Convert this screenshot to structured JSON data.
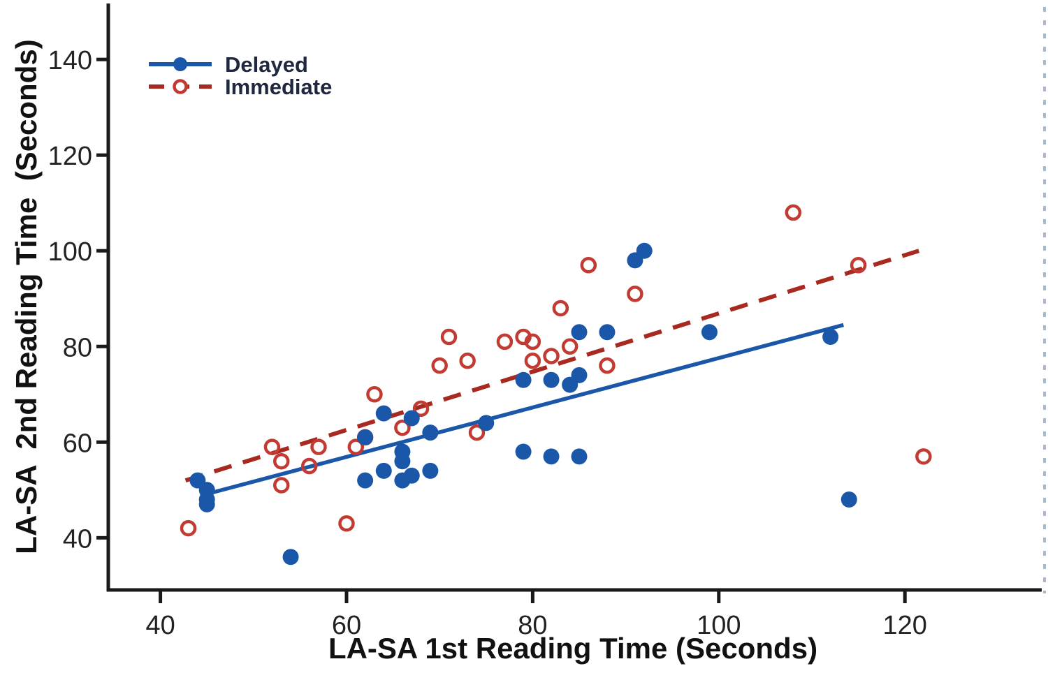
{
  "colors": {
    "background": "#ffffff",
    "axis": "#1a1a1a",
    "tick_label": "#222222",
    "legend_text": "#20283f",
    "delayed_blue": "#1b57a8",
    "immediate_red_marker": "#c23b32",
    "immediate_red_line": "#a8291f"
  },
  "legend": {
    "items": [
      {
        "label": "Delayed"
      },
      {
        "label": "Immediate"
      }
    ]
  },
  "chart_data": {
    "type": "scatter",
    "title": "",
    "xlabel": "LA-SA 1st Reading Time (Seconds)",
    "ylabel": "LA-SA  2nd Reading Time  (Seconds)",
    "xlim": [
      34.4,
      134.7
    ],
    "ylim": [
      29.1,
      151.7
    ],
    "xticks": [
      40,
      60,
      80,
      100,
      120
    ],
    "yticks": [
      40,
      60,
      80,
      100,
      120,
      140
    ],
    "grid": false,
    "legend_position": "top-left",
    "series": [
      {
        "name": "Delayed",
        "marker": "filled-circle",
        "color": "#1b57a8",
        "line_color": "#1b57a8",
        "line_style": "solid",
        "points": [
          [
            44,
            52
          ],
          [
            45,
            50
          ],
          [
            45,
            48
          ],
          [
            45,
            47
          ],
          [
            54,
            36
          ],
          [
            62,
            52
          ],
          [
            62,
            61
          ],
          [
            64,
            54
          ],
          [
            64,
            66
          ],
          [
            66,
            52
          ],
          [
            66,
            56
          ],
          [
            66,
            58
          ],
          [
            67,
            53
          ],
          [
            67,
            65
          ],
          [
            69,
            54
          ],
          [
            69,
            62
          ],
          [
            75,
            64
          ],
          [
            79,
            58
          ],
          [
            79,
            73
          ],
          [
            82,
            57
          ],
          [
            82,
            73
          ],
          [
            84,
            72
          ],
          [
            85,
            57
          ],
          [
            85,
            74
          ],
          [
            85,
            83
          ],
          [
            88,
            83
          ],
          [
            91,
            98
          ],
          [
            92,
            100
          ],
          [
            99,
            83
          ],
          [
            112,
            82
          ],
          [
            114,
            48
          ]
        ],
        "trendline": {
          "x1": 44.3,
          "y1": 48.8,
          "x2": 113.4,
          "y2": 84.5
        }
      },
      {
        "name": "Immediate",
        "marker": "open-circle",
        "color": "#c23b32",
        "line_color": "#a8291f",
        "line_style": "dashed",
        "points": [
          [
            43,
            42
          ],
          [
            52,
            59
          ],
          [
            53,
            51
          ],
          [
            53,
            56
          ],
          [
            56,
            55
          ],
          [
            57,
            59
          ],
          [
            60,
            43
          ],
          [
            61,
            59
          ],
          [
            62,
            61
          ],
          [
            63,
            70
          ],
          [
            66,
            63
          ],
          [
            68,
            67
          ],
          [
            70,
            76
          ],
          [
            71,
            82
          ],
          [
            73,
            77
          ],
          [
            74,
            62
          ],
          [
            77,
            81
          ],
          [
            79,
            82
          ],
          [
            80,
            77
          ],
          [
            80,
            81
          ],
          [
            82,
            78
          ],
          [
            83,
            88
          ],
          [
            84,
            80
          ],
          [
            86,
            97
          ],
          [
            88,
            76
          ],
          [
            91,
            91
          ],
          [
            108,
            108
          ],
          [
            115,
            97
          ],
          [
            122,
            57
          ]
        ],
        "trendline": {
          "x1": 42.7,
          "y1": 52.0,
          "x2": 121.5,
          "y2": 100.0
        }
      }
    ]
  }
}
